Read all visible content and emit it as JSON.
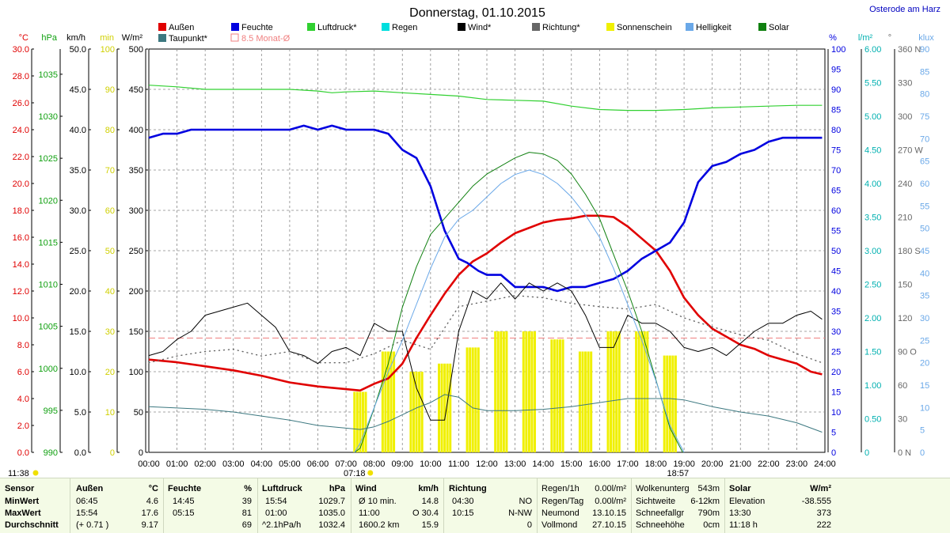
{
  "title": "Donnerstag, 01.10.2015",
  "location": "Osterode am Harz",
  "colors": {
    "aussen": "#e00000",
    "feuchte": "#0000e0",
    "luftdruck": "#30d030",
    "regen": "#00dede",
    "wind": "#000000",
    "richtung": "#666666",
    "sonnenschein": "#f0f000",
    "helligkeit": "#6aa8e8",
    "solar": "#108010",
    "taupunkt": "#3c7880",
    "monat": "#f08080"
  },
  "legend": [
    {
      "key": "aussen",
      "label": "Außen"
    },
    {
      "key": "feuchte",
      "label": "Feuchte"
    },
    {
      "key": "luftdruck",
      "label": "Luftdruck*"
    },
    {
      "key": "regen",
      "label": "Regen"
    },
    {
      "key": "wind",
      "label": "Wind*"
    },
    {
      "key": "richtung",
      "label": "Richtung*"
    },
    {
      "key": "sonnenschein",
      "label": "Sonnenschein"
    },
    {
      "key": "helligkeit",
      "label": "Helligkeit"
    },
    {
      "key": "solar",
      "label": "Solar"
    },
    {
      "key": "taupunkt",
      "label": "Taupunkt*"
    },
    {
      "key": "monat",
      "label": "8.5 Monat-Ø"
    }
  ],
  "axes_left": [
    {
      "unit": "°C",
      "color": "#e00000",
      "ticks": [
        "30.0",
        "28.0",
        "26.0",
        "24.0",
        "22.0",
        "20.0",
        "18.0",
        "16.0",
        "14.0",
        "12.0",
        "10.0",
        "8.0",
        "6.0",
        "4.0",
        "2.0",
        "0.0"
      ]
    },
    {
      "unit": "hPa",
      "color": "#10a010",
      "ticks": [
        "1035",
        "1030",
        "1025",
        "1020",
        "1015",
        "1010",
        "1005",
        "1000",
        "995",
        "990"
      ]
    },
    {
      "unit": "km/h",
      "color": "#000000",
      "ticks": [
        "50.0",
        "45.0",
        "40.0",
        "35.0",
        "30.0",
        "25.0",
        "20.0",
        "15.0",
        "10.0",
        "5.0",
        "0.0"
      ]
    },
    {
      "unit": "min",
      "color": "#d0d000",
      "ticks": [
        "100",
        "90",
        "80",
        "70",
        "60",
        "50",
        "40",
        "30",
        "20",
        "10",
        "0"
      ]
    },
    {
      "unit": "W/m²",
      "color": "#000000",
      "ticks": [
        "500",
        "450",
        "400",
        "350",
        "300",
        "250",
        "200",
        "150",
        "100",
        "50",
        "0"
      ]
    }
  ],
  "axes_right": [
    {
      "unit": "%",
      "color": "#0000e0",
      "ticks": [
        "100",
        "95",
        "90",
        "85",
        "80",
        "75",
        "70",
        "65",
        "60",
        "55",
        "50",
        "45",
        "40",
        "35",
        "30",
        "25",
        "20",
        "15",
        "10",
        "5",
        "0"
      ]
    },
    {
      "unit": "l/m²",
      "color": "#00b0b0",
      "ticks": [
        "6.00",
        "5.50",
        "5.00",
        "4.50",
        "4.00",
        "3.50",
        "3.00",
        "2.50",
        "2.00",
        "1.50",
        "1.00",
        "0.50",
        "0"
      ]
    },
    {
      "unit": "°",
      "color": "#666666",
      "ticks": [
        "360 N",
        "330",
        "300",
        "270 W",
        "240",
        "210",
        "180 S",
        "150",
        "120",
        "90 O",
        "60",
        "30",
        "0 N"
      ]
    },
    {
      "unit": "klux",
      "color": "#6aa8e8",
      "ticks": [
        "90",
        "85",
        "80",
        "75",
        "70",
        "65",
        "60",
        "55",
        "50",
        "45",
        "40",
        "35",
        "30",
        "25",
        "20",
        "15",
        "10",
        "5",
        "0"
      ]
    }
  ],
  "x_ticks": [
    "00:00",
    "01:00",
    "02:00",
    "03:00",
    "04:00",
    "05:00",
    "06:00",
    "07:00",
    "08:00",
    "09:00",
    "10:00",
    "11:00",
    "12:00",
    "13:00",
    "14:00",
    "15:00",
    "16:00",
    "17:00",
    "18:00",
    "19:00",
    "20:00",
    "21:00",
    "22:00",
    "23:00",
    "24:00"
  ],
  "markers": {
    "sunrise": "07:18",
    "sunset": "18:57",
    "daylength": "11:38"
  },
  "chart_data": {
    "type": "line",
    "title": "Donnerstag, 01.10.2015",
    "x_unit": "hour of day",
    "xlim": [
      0,
      24
    ],
    "month_avg_temp_c": 8.5,
    "series": [
      {
        "name": "Außen",
        "unit": "°C",
        "x": [
          0,
          1,
          2,
          3,
          4,
          5,
          6,
          7,
          7.5,
          8,
          8.5,
          9,
          9.5,
          10,
          10.5,
          11,
          11.5,
          12,
          12.5,
          13,
          13.5,
          14,
          14.5,
          15,
          15.5,
          16,
          16.5,
          17,
          17.5,
          18,
          18.5,
          19,
          19.5,
          20,
          20.5,
          21,
          21.5,
          22,
          22.5,
          23,
          23.5,
          23.9
        ],
        "y": [
          6.9,
          6.7,
          6.4,
          6.1,
          5.7,
          5.2,
          4.9,
          4.7,
          4.6,
          5.1,
          5.5,
          6.6,
          8.5,
          10.2,
          11.8,
          13.2,
          14.2,
          14.8,
          15.6,
          16.3,
          16.7,
          17.1,
          17.3,
          17.4,
          17.6,
          17.6,
          17.5,
          16.8,
          15.9,
          15.0,
          13.5,
          11.5,
          10.2,
          9.2,
          8.6,
          8.0,
          7.7,
          7.2,
          6.9,
          6.6,
          6.0,
          5.8
        ]
      },
      {
        "name": "Feuchte",
        "unit": "%",
        "x": [
          0,
          0.5,
          1,
          1.5,
          2,
          3,
          4,
          5,
          5.5,
          6,
          6.5,
          7,
          7.5,
          8,
          8.5,
          9,
          9.5,
          10,
          10.5,
          11,
          11.3,
          11.7,
          12,
          12.5,
          13,
          13.5,
          14,
          14.5,
          15,
          15.5,
          16,
          16.5,
          17,
          17.5,
          18,
          18.5,
          19,
          19.5,
          20,
          20.5,
          21,
          21.5,
          22,
          22.5,
          23,
          23.5,
          23.9
        ],
        "y": [
          78,
          79,
          79,
          80,
          80,
          80,
          80,
          80,
          81,
          80,
          81,
          80,
          80,
          80,
          79,
          75,
          73,
          66,
          55,
          48,
          47,
          45,
          44,
          44,
          41,
          41,
          41,
          40,
          41,
          41,
          42,
          43,
          45,
          48,
          50,
          52,
          57,
          67,
          71,
          72,
          74,
          75,
          77,
          78,
          78,
          78,
          78
        ]
      },
      {
        "name": "Luftdruck",
        "unit": "hPa",
        "x": [
          0,
          1,
          2,
          3,
          4,
          5,
          6,
          6.5,
          7,
          8,
          9,
          10,
          11,
          12,
          13,
          14,
          15,
          16,
          17,
          18,
          19,
          20,
          21,
          22,
          23,
          23.9
        ],
        "y": [
          1033.7,
          1033.5,
          1033.2,
          1033.2,
          1033.2,
          1033.2,
          1033.0,
          1032.8,
          1032.9,
          1033.0,
          1032.8,
          1032.6,
          1032.4,
          1032.0,
          1031.9,
          1031.8,
          1031.2,
          1030.8,
          1030.7,
          1030.7,
          1030.8,
          1031.0,
          1031.1,
          1031.2,
          1031.3,
          1031.3
        ]
      },
      {
        "name": "Wind",
        "unit": "km/h",
        "x": [
          0,
          0.5,
          1,
          1.5,
          2,
          2.5,
          3,
          3.5,
          4,
          4.5,
          5,
          5.5,
          6,
          6.5,
          7,
          7.5,
          8,
          8.5,
          9,
          9.5,
          10,
          10.5,
          11,
          11.5,
          12,
          12.5,
          13,
          13.5,
          14,
          14.5,
          15,
          15.5,
          16,
          16.5,
          17,
          17.5,
          18,
          18.5,
          19,
          19.5,
          20,
          20.5,
          21,
          21.5,
          22,
          22.5,
          23,
          23.5,
          23.9
        ],
        "y": [
          12,
          12.5,
          14,
          15,
          17,
          17.5,
          18,
          18.5,
          17,
          15.5,
          12.5,
          12,
          11,
          12.5,
          13,
          12,
          16,
          15,
          15,
          8,
          4,
          4,
          15,
          20,
          19,
          21,
          19,
          21,
          20,
          21,
          20,
          17,
          13,
          13,
          17,
          16,
          16,
          15,
          13,
          12.5,
          13,
          12,
          13.5,
          15,
          16,
          16,
          17,
          17.5,
          16.5
        ]
      },
      {
        "name": "Richtung",
        "unit": "°",
        "x": [
          0,
          1,
          2,
          3,
          4,
          5,
          6,
          7,
          8,
          9,
          10,
          11,
          12,
          13,
          14,
          15,
          16,
          17,
          18,
          19,
          20,
          21,
          22,
          23,
          23.9
        ],
        "y": [
          80,
          86,
          90,
          92,
          86,
          90,
          80,
          80,
          88,
          100,
          92,
          130,
          135,
          140,
          138,
          133,
          130,
          128,
          132,
          120,
          112,
          105,
          100,
          88,
          80
        ]
      },
      {
        "name": "Solar",
        "unit": "W/m²",
        "x": [
          7.3,
          7.5,
          8,
          8.5,
          9,
          9.5,
          10,
          10.5,
          11,
          11.5,
          12,
          12.5,
          13,
          13.5,
          14,
          14.5,
          15,
          15.5,
          16,
          16.5,
          17,
          17.5,
          18,
          18.5,
          18.95
        ],
        "y": [
          0,
          5,
          55,
          110,
          180,
          230,
          270,
          290,
          310,
          330,
          345,
          355,
          365,
          372,
          370,
          362,
          345,
          320,
          290,
          245,
          200,
          150,
          90,
          30,
          0
        ]
      },
      {
        "name": "Helligkeit",
        "unit": "klux",
        "x": [
          7.3,
          7.5,
          8,
          8.5,
          9,
          9.5,
          10,
          10.5,
          11,
          11.5,
          12,
          12.5,
          13,
          13.5,
          14,
          14.5,
          15,
          15.5,
          16,
          16.5,
          17,
          17.5,
          18,
          18.5,
          19
        ],
        "y": [
          0,
          2,
          10,
          18,
          25,
          33,
          41,
          48,
          52,
          54,
          57,
          60,
          62,
          63,
          62,
          60,
          57,
          53,
          48,
          41,
          33,
          25,
          16,
          6,
          0
        ]
      },
      {
        "name": "Taupunkt",
        "unit": "°C",
        "x": [
          0,
          1,
          2,
          3,
          4,
          5,
          6,
          7,
          7.5,
          8,
          8.5,
          9,
          9.5,
          10,
          10.5,
          11,
          11.5,
          12,
          13,
          14,
          15,
          16,
          17,
          18,
          18.5,
          19,
          20,
          21,
          22,
          23,
          23.9
        ],
        "y": [
          3.4,
          3.3,
          3.2,
          3.0,
          2.7,
          2.4,
          2.0,
          1.8,
          1.7,
          1.9,
          2.3,
          2.8,
          3.3,
          3.7,
          4.3,
          4.1,
          3.3,
          3.1,
          3.1,
          3.2,
          3.4,
          3.7,
          4.0,
          4.0,
          4.0,
          3.9,
          3.4,
          3.0,
          2.7,
          2.2,
          1.5
        ]
      },
      {
        "name": "Sonnenschein",
        "unit": "min",
        "x": [
          7.5,
          8.5,
          9.5,
          10.5,
          11.5,
          12.5,
          13.5,
          14.5,
          15.5,
          16.5,
          17.5,
          18.5
        ],
        "y": [
          15,
          25,
          20,
          22,
          26,
          30,
          30,
          28,
          25,
          30,
          30,
          24
        ]
      }
    ]
  },
  "stats": {
    "sensor": {
      "h": "Sensor",
      "rows": [
        "MinWert",
        "MaxWert",
        "Durchschnitt"
      ]
    },
    "aussen": {
      "h1": "Außen",
      "h2": "°C",
      "t": [
        "06:45",
        "15:54",
        "(+ 0.71 )"
      ],
      "v": [
        "4.6",
        "17.6",
        "9.17"
      ]
    },
    "feuchte": {
      "h1": "Feuchte",
      "h2": "%",
      "t": [
        "14:45",
        "05:15",
        ""
      ],
      "v": [
        "39",
        "81",
        "69"
      ]
    },
    "druck": {
      "h1": "Luftdruck",
      "h2": "hPa",
      "t": [
        "15:54",
        "01:00",
        "^2.1hPa/h"
      ],
      "v": [
        "1029.7",
        "1035.0",
        "1032.4"
      ]
    },
    "wind": {
      "h1": "Wind",
      "h2": "km/h",
      "t": [
        "Ø 10 min.",
        "11:00",
        "1600.2 km"
      ],
      "v": [
        "14.8",
        "O 30.4",
        "15.9"
      ]
    },
    "richtung": {
      "h1": "Richtung",
      "t": [
        "04:30",
        "10:15",
        ""
      ],
      "v": [
        "NO",
        "N-NW",
        "0"
      ]
    },
    "regen": {
      "l": [
        "Regen/1h",
        "Regen/Tag",
        "Neumond",
        "Vollmond"
      ],
      "v": [
        "0.00l/m²",
        "0.00l/m²",
        "13.10.15",
        "27.10.15"
      ]
    },
    "wolken": {
      "l": [
        "Wolkenunterg",
        "Sichtweite",
        "Schneefallgr",
        "Schneehöhe"
      ],
      "v": [
        "543m",
        "6-12km",
        "790m",
        "0cm"
      ]
    },
    "solar": {
      "h1": "Solar",
      "h2": "W/m²",
      "l": [
        "Elevation",
        "13:30",
        "11:18 h"
      ],
      "v": [
        "-38.555",
        "373",
        "222"
      ]
    }
  }
}
